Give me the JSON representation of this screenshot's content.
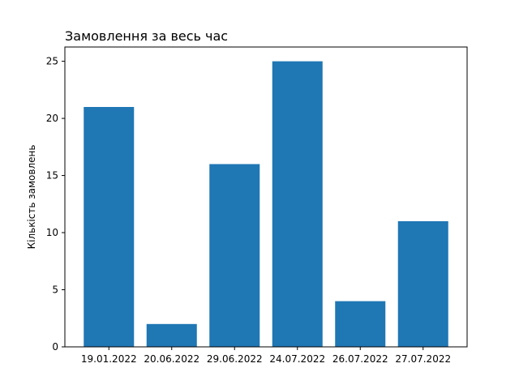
{
  "chart_data": {
    "type": "bar",
    "title": "Замовлення за весь час",
    "xlabel": "",
    "ylabel": "Кількість замовлень",
    "categories": [
      "19.01.2022",
      "20.06.2022",
      "29.06.2022",
      "24.07.2022",
      "26.07.2022",
      "27.07.2022"
    ],
    "values": [
      21,
      2,
      16,
      25,
      4,
      11
    ],
    "ylim": [
      0,
      26.25
    ],
    "yticks": [
      0,
      5,
      10,
      15,
      20,
      25
    ],
    "bar_color": "#1f77b4",
    "grid": false,
    "legend": "none"
  }
}
